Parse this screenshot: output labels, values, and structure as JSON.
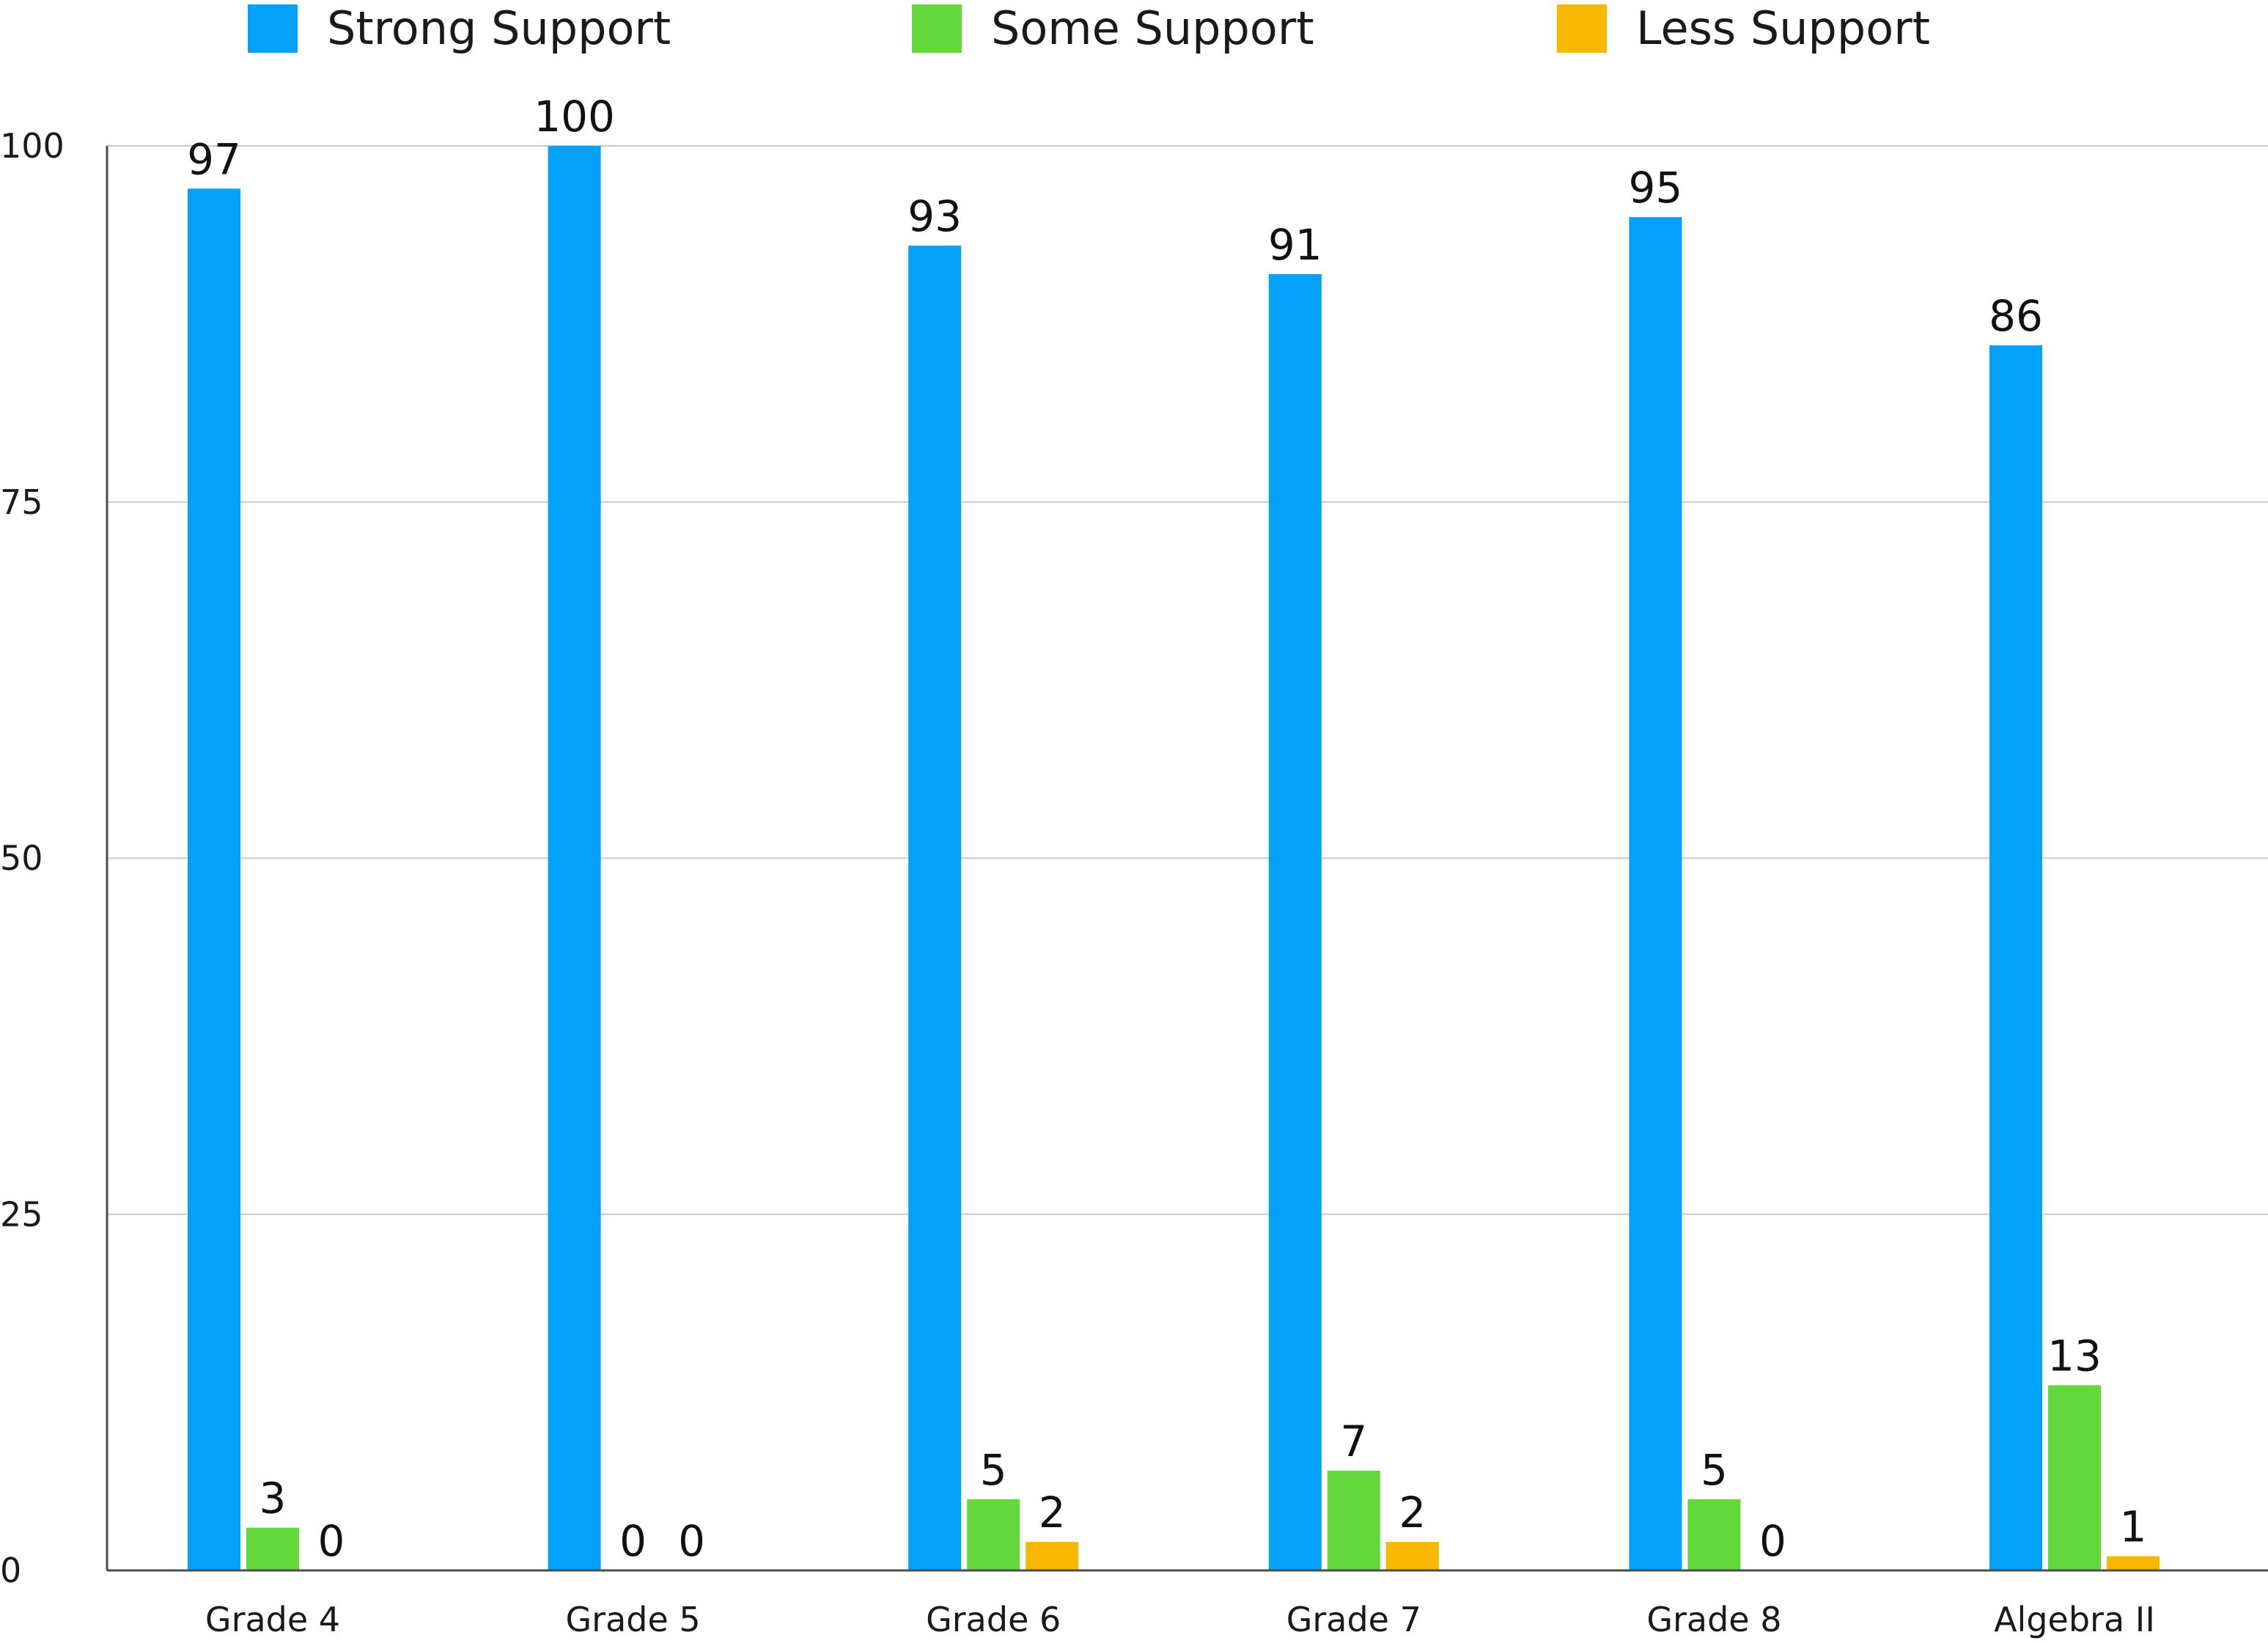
{
  "chart_data": {
    "type": "bar",
    "title": "",
    "xlabel": "",
    "ylabel": "",
    "categories": [
      "Grade 4",
      "Grade 5",
      "Grade 6",
      "Grade 7",
      "Grade 8",
      "Algebra II"
    ],
    "series": [
      {
        "name": "Strong Support",
        "color": "#02A2FC",
        "values": [
          97,
          100,
          93,
          91,
          95,
          86
        ]
      },
      {
        "name": "Some Support",
        "color": "#62D83A",
        "values": [
          3,
          0,
          5,
          7,
          5,
          13
        ]
      },
      {
        "name": "Less Support",
        "color": "#F8B800",
        "values": [
          0,
          0,
          2,
          2,
          0,
          1
        ]
      }
    ],
    "ylim": [
      0,
      100
    ],
    "yticks": [
      0,
      25,
      50,
      75,
      100
    ],
    "grid": true,
    "legend_position": "top",
    "gridline_color": "#C8C8C8",
    "axis_color": "#4D4D4D"
  }
}
